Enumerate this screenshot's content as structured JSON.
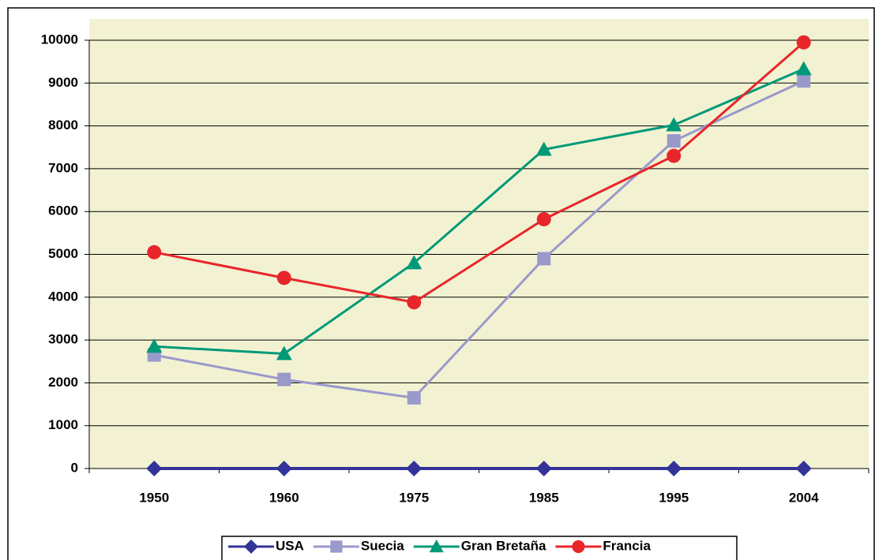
{
  "chart_data": {
    "type": "line",
    "categories": [
      "1950",
      "1960",
      "1975",
      "1985",
      "1995",
      "2004"
    ],
    "series": [
      {
        "name": "USA",
        "color": "#333399",
        "marker": "diamond",
        "values": [
          0,
          0,
          0,
          0,
          0,
          0
        ]
      },
      {
        "name": "Suecia",
        "color": "#9999cc",
        "marker": "square",
        "values": [
          2650,
          2080,
          1650,
          4900,
          7650,
          9050
        ]
      },
      {
        "name": "Gran Bretaña",
        "color": "#009977",
        "marker": "triangle",
        "values": [
          2850,
          2680,
          4800,
          7450,
          8020,
          9330
        ]
      },
      {
        "name": "Francia",
        "color": "#e8262a",
        "marker": "circle",
        "values": [
          5050,
          4450,
          3880,
          5820,
          7300,
          9950
        ]
      }
    ],
    "ylim": [
      0,
      10000
    ],
    "yticks": [
      0,
      1000,
      2000,
      3000,
      4000,
      5000,
      6000,
      7000,
      8000,
      9000,
      10000
    ],
    "grid": true,
    "legend": "bottom"
  }
}
